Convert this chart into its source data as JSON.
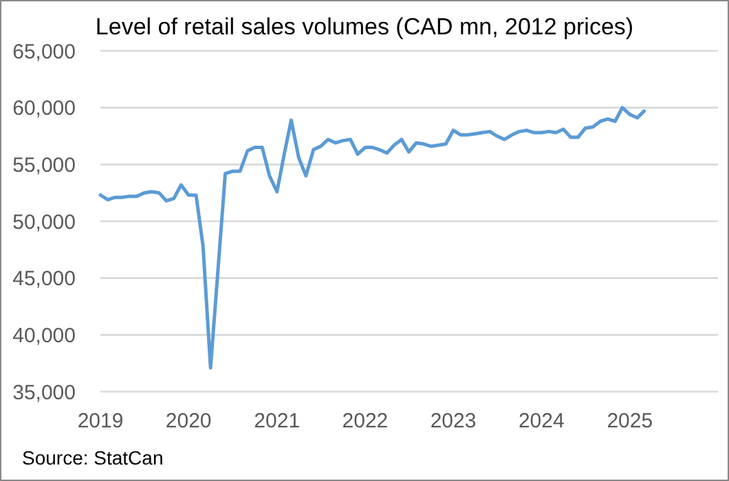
{
  "chart_data": {
    "type": "line",
    "title": "Level of retail sales volumes (CAD mn, 2012 prices)",
    "annotations": [
      "Source: StatCan"
    ],
    "x": [
      "2019-01",
      "2019-02",
      "2019-03",
      "2019-04",
      "2019-05",
      "2019-06",
      "2019-07",
      "2019-08",
      "2019-09",
      "2019-10",
      "2019-11",
      "2019-12",
      "2020-01",
      "2020-02",
      "2020-03",
      "2020-04",
      "2020-05",
      "2020-06",
      "2020-07",
      "2020-08",
      "2020-09",
      "2020-10",
      "2020-11",
      "2020-12",
      "2021-01",
      "2021-02",
      "2021-03",
      "2021-04",
      "2021-05",
      "2021-06",
      "2021-07",
      "2021-08",
      "2021-09",
      "2021-10",
      "2021-11",
      "2021-12",
      "2022-01",
      "2022-02",
      "2022-03",
      "2022-04",
      "2022-05",
      "2022-06",
      "2022-07",
      "2022-08",
      "2022-09",
      "2022-10",
      "2022-11",
      "2022-12",
      "2023-01",
      "2023-02",
      "2023-03",
      "2023-04",
      "2023-05",
      "2023-06",
      "2023-07",
      "2023-08",
      "2023-09",
      "2023-10",
      "2023-11",
      "2023-12",
      "2024-01",
      "2024-02",
      "2024-03",
      "2024-04",
      "2024-05",
      "2024-06",
      "2024-07",
      "2024-08",
      "2024-09",
      "2024-10",
      "2024-11",
      "2024-12",
      "2025-01",
      "2025-02",
      "2025-03"
    ],
    "series": [
      {
        "color": "#5b9bd5",
        "values": [
          52300,
          51900,
          52100,
          52100,
          52200,
          52200,
          52500,
          52600,
          52500,
          51800,
          52000,
          53200,
          52300,
          52300,
          47800,
          37100,
          45500,
          54200,
          54400,
          54400,
          56200,
          56500,
          56500,
          54000,
          52600,
          56000,
          58900,
          55600,
          54000,
          56300,
          56600,
          57200,
          56900,
          57100,
          57200,
          55900,
          56500,
          56500,
          56300,
          56000,
          56700,
          57200,
          56100,
          56900,
          56800,
          56600,
          56700,
          56800,
          58000,
          57600,
          57600,
          57700,
          57800,
          57900,
          57500,
          57200,
          57600,
          57900,
          58000,
          57800,
          57800,
          57900,
          57800,
          58100,
          57400,
          57400,
          58200,
          58300,
          58800,
          59000,
          58800,
          60000,
          59400,
          59100,
          59700
        ]
      }
    ],
    "xlim": [
      "2019-01",
      "2026-01"
    ],
    "xticks": [
      "2019",
      "2020",
      "2021",
      "2022",
      "2023",
      "2024",
      "2025"
    ],
    "ylim": [
      35000,
      65000
    ],
    "yticks": [
      {
        "value": 35000,
        "label": "35,000"
      },
      {
        "value": 40000,
        "label": "40,000"
      },
      {
        "value": 45000,
        "label": "45,000"
      },
      {
        "value": 50000,
        "label": "50,000"
      },
      {
        "value": 55000,
        "label": "55,000"
      },
      {
        "value": 60000,
        "label": "60,000"
      },
      {
        "value": 65000,
        "label": "65,000"
      }
    ],
    "grid": "y",
    "marker": "none",
    "line_style": "solid"
  }
}
